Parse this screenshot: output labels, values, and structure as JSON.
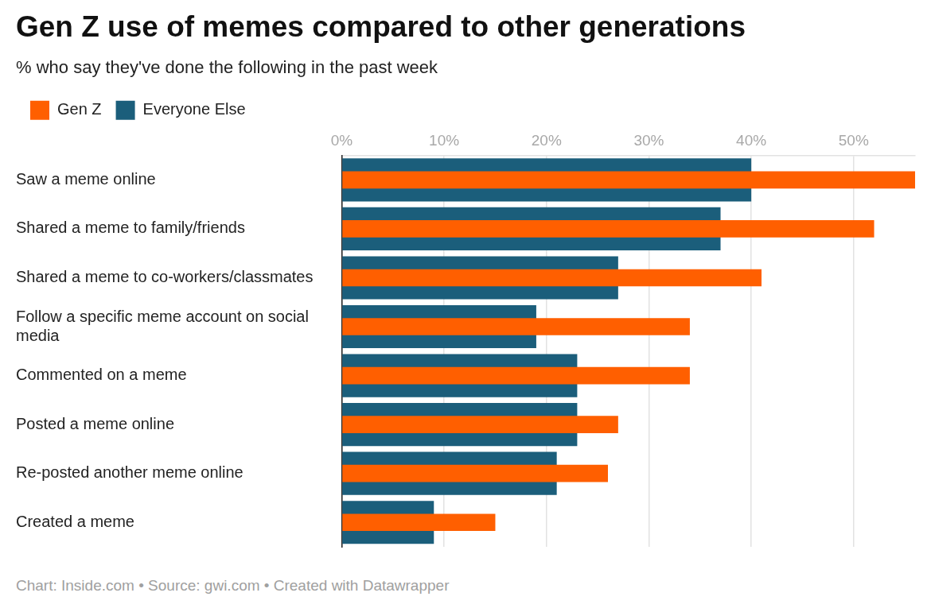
{
  "chart_data": {
    "type": "bar",
    "orientation": "horizontal",
    "title": "Gen Z use of memes compared to other generations",
    "subtitle": "% who say they've done the following in the past week",
    "caption": "Chart: Inside.com • Source: gwi.com • Created with Datawrapper",
    "categories": [
      "Saw a meme online",
      "Shared a meme to family/friends",
      "Shared a meme to co-workers/classmates",
      "Follow a specific meme account on social media",
      "Commented on a meme",
      "Posted a meme online",
      "Re-posted another meme online",
      "Created a meme"
    ],
    "series": [
      {
        "name": "Everyone Else",
        "color": "#1b5e7b",
        "values": [
          40,
          37,
          27,
          19,
          23,
          23,
          21,
          9
        ]
      },
      {
        "name": "Gen Z",
        "color": "#ff5f00",
        "values": [
          56,
          52,
          41,
          34,
          34,
          27,
          26,
          15
        ]
      }
    ],
    "xlim": [
      0,
      56
    ],
    "xticks": [
      {
        "value": 0,
        "label": "0%"
      },
      {
        "value": 10,
        "label": "10%"
      },
      {
        "value": 20,
        "label": "20%"
      },
      {
        "value": 30,
        "label": "30%"
      },
      {
        "value": 40,
        "label": "40%"
      },
      {
        "value": 50,
        "label": "50%"
      }
    ],
    "grid": true,
    "legend": "top-left"
  }
}
